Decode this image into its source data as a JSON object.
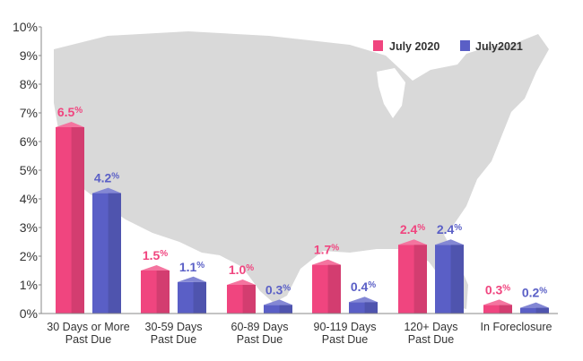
{
  "chart_data": {
    "type": "bar",
    "categories": [
      [
        "30 Days or More",
        "Past Due"
      ],
      [
        "30-59 Days",
        "Past Due"
      ],
      [
        "60-89 Days",
        "Past Due"
      ],
      [
        "90-119 Days",
        "Past Due"
      ],
      [
        "120+ Days",
        "Past Due"
      ],
      [
        "In Foreclosure"
      ]
    ],
    "series": [
      {
        "name": "July 2020",
        "color": "#f0457f",
        "values": [
          6.5,
          1.5,
          1.0,
          1.7,
          2.4,
          0.3
        ],
        "labels": [
          "6.5",
          "1.5",
          "1.0",
          "1.7",
          "2.4",
          "0.3"
        ]
      },
      {
        "name": "July2021",
        "color": "#5a5fc6",
        "values": [
          4.2,
          1.1,
          0.3,
          0.4,
          2.4,
          0.2
        ],
        "labels": [
          "4.2",
          "1.1",
          "0.3",
          "0.4",
          "2.4",
          "0.2"
        ]
      }
    ],
    "ylim": [
      0,
      10
    ],
    "yticks": [
      "0%",
      "1%",
      "2%",
      "3%",
      "4%",
      "5%",
      "6%",
      "7%",
      "8%",
      "9%",
      "10%"
    ],
    "value_suffix": "%",
    "legend_position": "top-right",
    "grid": false,
    "background_image": "map of the United States (light gray silhouette)"
  }
}
